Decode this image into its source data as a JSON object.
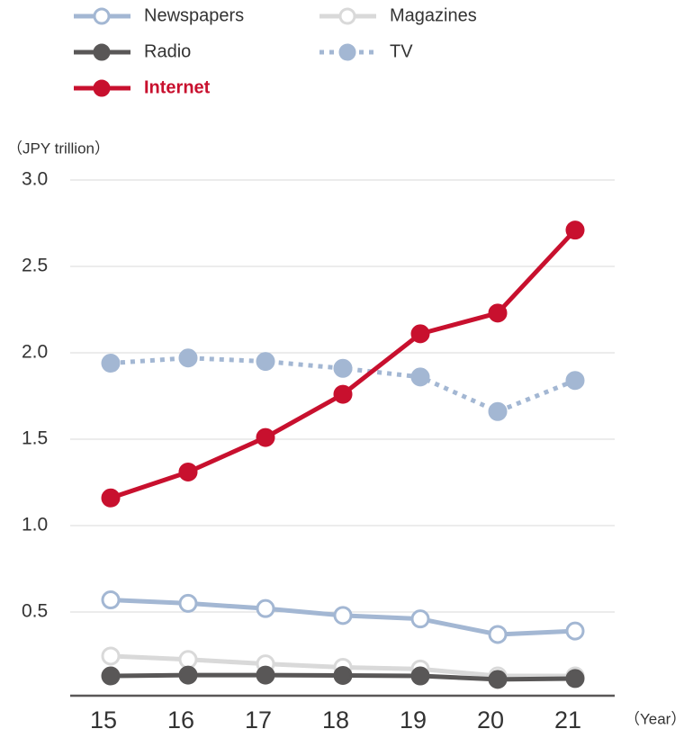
{
  "chart_data": {
    "type": "line",
    "y_label": "（JPY trillion）",
    "x_label": "（Year）",
    "categories": [
      "15",
      "16",
      "17",
      "18",
      "19",
      "20",
      "21"
    ],
    "series": [
      {
        "name": "Newspapers",
        "color": "#a3b7d3",
        "marker": "open",
        "values": [
          0.57,
          0.55,
          0.52,
          0.48,
          0.46,
          0.37,
          0.39
        ]
      },
      {
        "name": "Magazines",
        "color": "#d9d9d9",
        "marker": "open",
        "values": [
          0.245,
          0.225,
          0.2,
          0.18,
          0.17,
          0.13,
          0.13
        ]
      },
      {
        "name": "Radio",
        "color": "#595757",
        "marker": "filled",
        "values": [
          0.13,
          0.135,
          0.135,
          0.133,
          0.13,
          0.11,
          0.115
        ]
      },
      {
        "name": "TV",
        "color": "#a3b7d3",
        "marker": "filled",
        "dash": true,
        "values": [
          1.94,
          1.97,
          1.95,
          1.91,
          1.86,
          1.66,
          1.84
        ]
      },
      {
        "name": "Internet",
        "color": "#c8102e",
        "marker": "filled",
        "highlight": true,
        "values": [
          1.16,
          1.31,
          1.51,
          1.76,
          2.11,
          2.23,
          2.71
        ]
      }
    ],
    "ylim": [
      0,
      3
    ],
    "yticks": [
      0.5,
      {
        "value": 1,
        "label": "1.0"
      },
      1.5,
      {
        "value": 2,
        "label": "2.0"
      },
      2.5,
      {
        "value": 3,
        "label": "3.0"
      }
    ],
    "grid": true
  }
}
